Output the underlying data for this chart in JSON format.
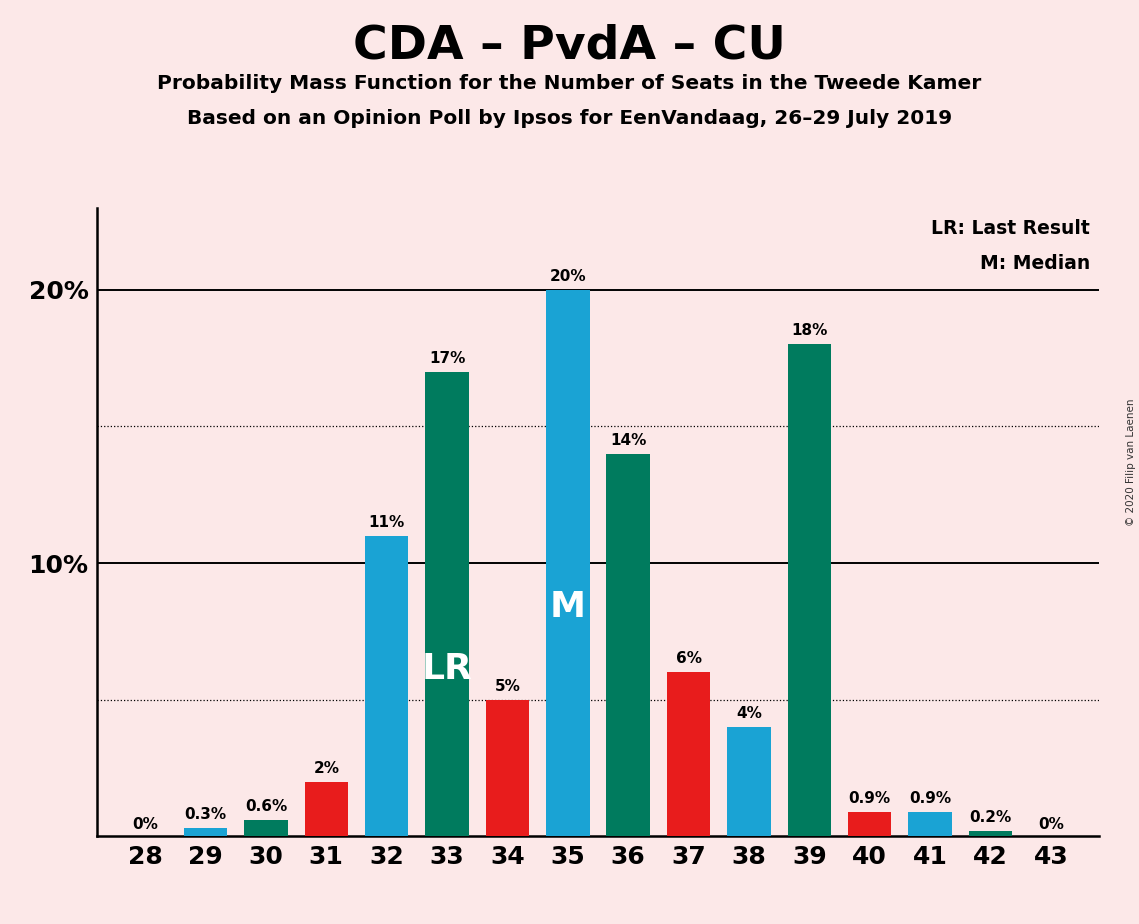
{
  "title": "CDA – PvdA – CU",
  "subtitle1": "Probability Mass Function for the Number of Seats in the Tweede Kamer",
  "subtitle2": "Based on an Opinion Poll by Ipsos for EenVandaag, 26–29 July 2019",
  "copyright": "© 2020 Filip van Laenen",
  "seats": [
    28,
    29,
    30,
    31,
    32,
    33,
    34,
    35,
    36,
    37,
    38,
    39,
    40,
    41,
    42,
    43
  ],
  "values": [
    0.0,
    0.3,
    0.6,
    2.0,
    11.0,
    17.0,
    5.0,
    20.0,
    14.0,
    6.0,
    4.0,
    18.0,
    0.9,
    0.9,
    0.2,
    0.0
  ],
  "labels": [
    "0%",
    "0.3%",
    "0.6%",
    "2%",
    "11%",
    "17%",
    "5%",
    "20%",
    "14%",
    "6%",
    "4%",
    "18%",
    "0.9%",
    "0.9%",
    "0.2%",
    "0%"
  ],
  "colors": [
    "#1aa3d4",
    "#1aa3d4",
    "#007b5e",
    "#e81c1c",
    "#1aa3d4",
    "#007b5e",
    "#e81c1c",
    "#1aa3d4",
    "#007b5e",
    "#e81c1c",
    "#1aa3d4",
    "#007b5e",
    "#e81c1c",
    "#1aa3d4",
    "#007b5e",
    "#007b5e"
  ],
  "LR_seat": 33,
  "M_seat": 35,
  "background_color": "#fce8e8",
  "bar_width": 0.72,
  "color_blue": "#1aa3d4",
  "color_green": "#007b5e",
  "color_red": "#e81c1c",
  "legend_LR": "LR: Last Result",
  "legend_M": "M: Median",
  "ylim": [
    0,
    23
  ],
  "xlim": [
    27.2,
    43.8
  ]
}
